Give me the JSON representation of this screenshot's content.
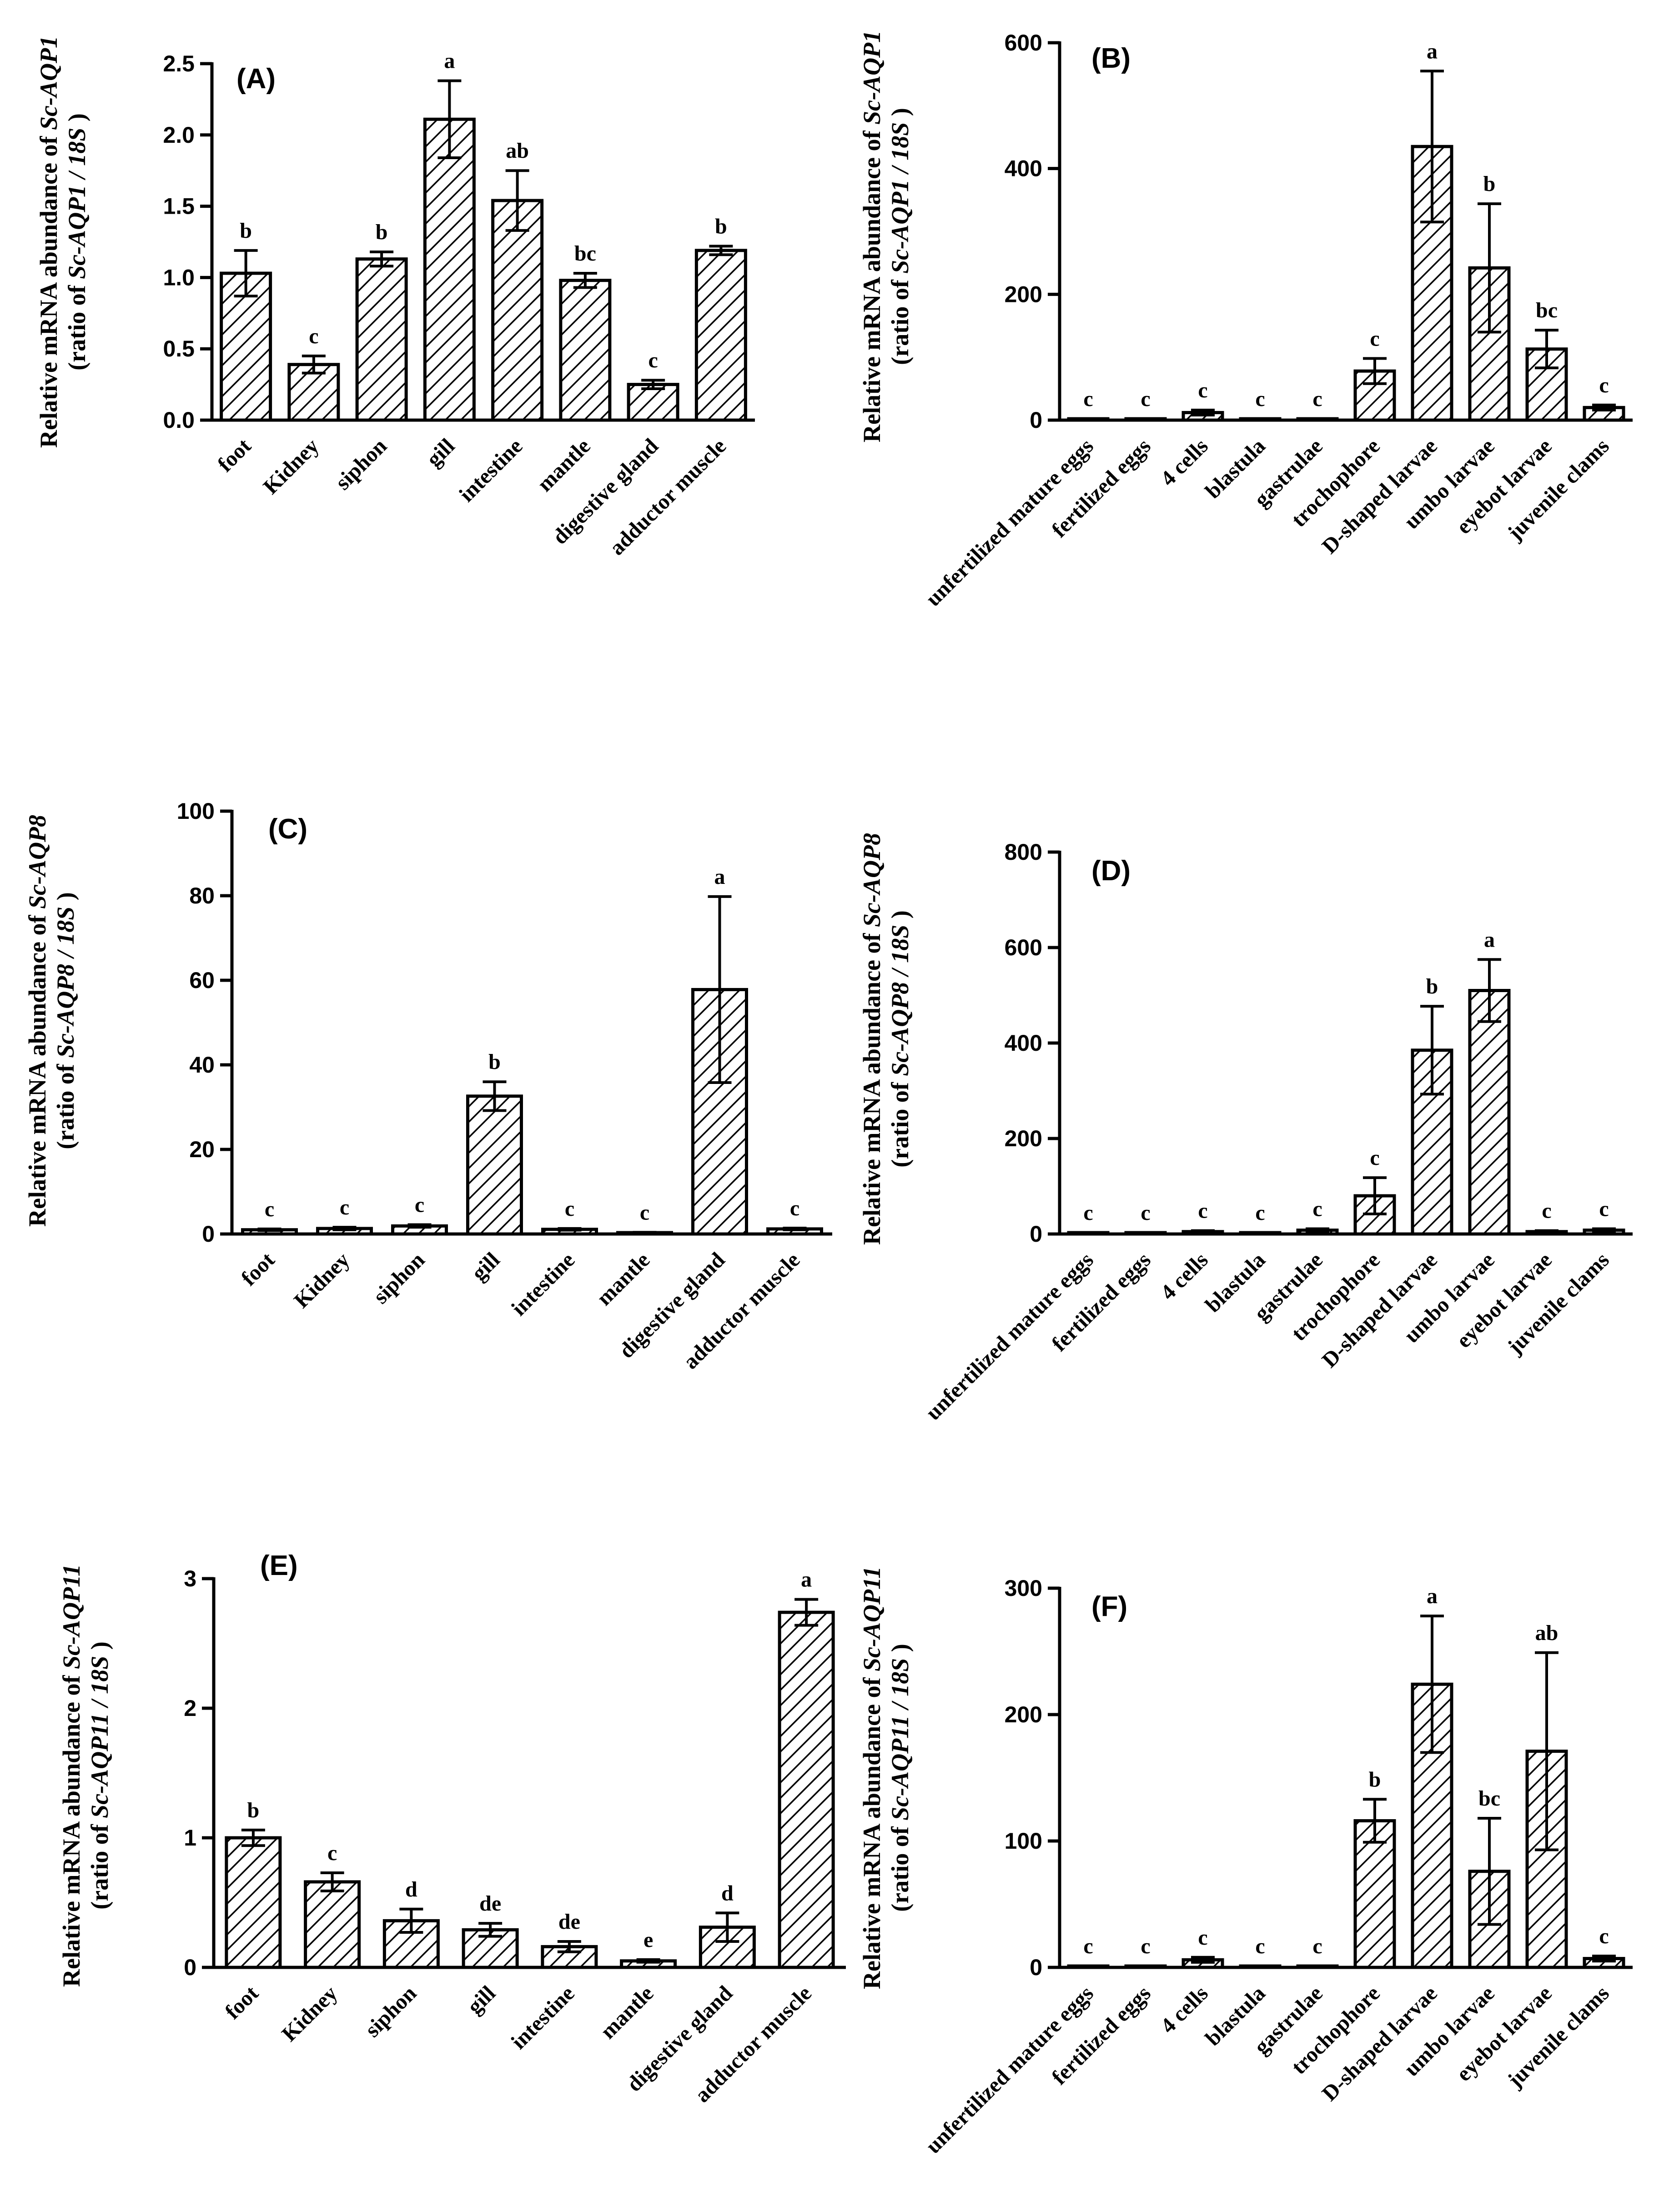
{
  "figure": {
    "hatch_color": "#000000",
    "bar_stroke": "#000000",
    "background": "#ffffff"
  },
  "chart_data": [
    {
      "type": "bar",
      "panel_label": "(A)",
      "gene": "Sc-AQP1",
      "ylabel_line1": "Relative mRNA abundance of ",
      "ylabel_gene": "Sc-AQP1",
      "ylabel_line2_pre": "(ratio of ",
      "ylabel_line2_it": "Sc-AQP1 / 18S",
      "ylabel_line2_post": " )",
      "ylim": [
        0,
        2.5
      ],
      "yticks": [
        "0.0",
        "0.5",
        "1.0",
        "1.5",
        "2.0",
        "2.5"
      ],
      "ytick_values": [
        0,
        0.5,
        1.0,
        1.5,
        2.0,
        2.5
      ],
      "categories": [
        "foot",
        "Kidney",
        "siphon",
        "gill",
        "intestine",
        "mantle",
        "digestive gland",
        "adductor muscle"
      ],
      "values": [
        1.03,
        0.39,
        1.13,
        2.11,
        1.54,
        0.98,
        0.25,
        1.19
      ],
      "errors": [
        0.16,
        0.06,
        0.05,
        0.27,
        0.21,
        0.05,
        0.03,
        0.03
      ],
      "significance": [
        "b",
        "c",
        "b",
        "a",
        "ab",
        "bc",
        "c",
        "b"
      ]
    },
    {
      "type": "bar",
      "panel_label": "(B)",
      "gene": "Sc-AQP1",
      "ylabel_line1": "Relative mRNA abundance of ",
      "ylabel_gene": "Sc-AQP1",
      "ylabel_line2_pre": "(ratio of ",
      "ylabel_line2_it": "Sc-AQP1 / 18S",
      "ylabel_line2_post": " )",
      "ylim": [
        0,
        600
      ],
      "yticks": [
        "0",
        "200",
        "400",
        "600"
      ],
      "ytick_values": [
        0,
        200,
        400,
        600
      ],
      "categories": [
        "unfertilized mature eggs",
        "fertilized eggs",
        "4 cells",
        "blastula",
        "gastrulae",
        "trochophore",
        "D-shaped larvae",
        "umbo larvae",
        "eyebot larvae",
        "juvenile clams"
      ],
      "values": [
        1,
        1,
        12,
        1,
        1,
        78,
        435,
        242,
        113,
        20
      ],
      "errors": [
        0,
        0,
        4,
        0,
        0,
        20,
        120,
        102,
        30,
        4
      ],
      "significance": [
        "c",
        "c",
        "c",
        "c",
        "c",
        "c",
        "a",
        "b",
        "bc",
        "c"
      ]
    },
    {
      "type": "bar",
      "panel_label": "(C)",
      "gene": "Sc-AQP8",
      "ylabel_line1": "Relative mRNA abundance of ",
      "ylabel_gene": "Sc-AQP8",
      "ylabel_line2_pre": "(ratio of ",
      "ylabel_line2_it": "Sc-AQP8 / 18S",
      "ylabel_line2_post": " )",
      "ylim": [
        0,
        100
      ],
      "yticks": [
        "0",
        "20",
        "40",
        "60",
        "80",
        "100"
      ],
      "ytick_values": [
        0,
        20,
        40,
        60,
        80,
        100
      ],
      "categories": [
        "foot",
        "Kidney",
        "siphon",
        "gill",
        "intestine",
        "mantle",
        "digestive gland",
        "adductor muscle"
      ],
      "values": [
        1.0,
        1.3,
        1.9,
        32.6,
        1.1,
        0.3,
        57.8,
        1.2
      ],
      "errors": [
        0.2,
        0.3,
        0.3,
        3.4,
        0.2,
        0.1,
        22.0,
        0.2
      ],
      "significance": [
        "c",
        "c",
        "c",
        "b",
        "c",
        "c",
        "a",
        "c"
      ]
    },
    {
      "type": "bar",
      "panel_label": "(D)",
      "gene": "Sc-AQP8",
      "ylabel_line1": "Relative mRNA abundance of ",
      "ylabel_gene": "Sc-AQP8",
      "ylabel_line2_pre": "(ratio of ",
      "ylabel_line2_it": "Sc-AQP8 / 18S",
      "ylabel_line2_post": " )",
      "ylim": [
        0,
        800
      ],
      "yticks": [
        "0",
        "200",
        "400",
        "600",
        "800"
      ],
      "ytick_values": [
        0,
        200,
        400,
        600,
        800
      ],
      "categories": [
        "unfertilized mature eggs",
        "fertilized eggs",
        "4 cells",
        "blastula",
        "gastrulae",
        "trochophore",
        "D-shaped larvae",
        "umbo larvae",
        "eyebot larvae",
        "juvenile clams"
      ],
      "values": [
        1,
        1,
        5,
        1,
        8,
        80,
        385,
        510,
        5,
        8
      ],
      "errors": [
        0,
        0,
        2,
        0,
        3,
        38,
        92,
        65,
        2,
        3
      ],
      "significance": [
        "c",
        "c",
        "c",
        "c",
        "c",
        "c",
        "b",
        "a",
        "c",
        "c"
      ]
    },
    {
      "type": "bar",
      "panel_label": "(E)",
      "gene": "Sc-AQP11",
      "ylabel_line1": "Relative mRNA abundance of ",
      "ylabel_gene": "Sc-AQP11",
      "ylabel_line2_pre": "(ratio of ",
      "ylabel_line2_it": "Sc-AQP11 / 18S",
      "ylabel_line2_post": " )",
      "ylim": [
        0,
        3
      ],
      "yticks": [
        "0",
        "1",
        "2",
        "3"
      ],
      "ytick_values": [
        0,
        1,
        2,
        3
      ],
      "categories": [
        "foot",
        "Kidney",
        "siphon",
        "gill",
        "intestine",
        "mantle",
        "digestive gland",
        "adductor muscle"
      ],
      "values": [
        1.0,
        0.66,
        0.36,
        0.29,
        0.16,
        0.05,
        0.31,
        2.74
      ],
      "errors": [
        0.06,
        0.07,
        0.09,
        0.05,
        0.04,
        0.01,
        0.11,
        0.1
      ],
      "significance": [
        "b",
        "c",
        "d",
        "de",
        "de",
        "e",
        "d",
        "a"
      ]
    },
    {
      "type": "bar",
      "panel_label": "(F)",
      "gene": "Sc-AQP11",
      "ylabel_line1": "Relative mRNA abundance of ",
      "ylabel_gene": "Sc-AQP11",
      "ylabel_line2_pre": "(ratio of ",
      "ylabel_line2_it": "Sc-AQP11 / 18S",
      "ylabel_line2_post": " )",
      "ylim": [
        0,
        300
      ],
      "yticks": [
        "0",
        "100",
        "200",
        "300"
      ],
      "ytick_values": [
        0,
        100,
        200,
        300
      ],
      "categories": [
        "unfertilized mature eggs",
        "fertilized eggs",
        "4 cells",
        "blastula",
        "gastrulae",
        "trochophore",
        "D-shaped larvae",
        "umbo larvae",
        "eyebot larvae",
        "juvenile clams"
      ],
      "values": [
        1,
        1,
        6,
        1,
        1,
        116,
        224,
        76,
        171,
        7
      ],
      "errors": [
        0,
        0,
        2,
        0,
        0,
        17,
        54,
        42,
        78,
        2
      ],
      "significance": [
        "c",
        "c",
        "c",
        "c",
        "c",
        "b",
        "a",
        "bc",
        "ab",
        "c"
      ]
    }
  ]
}
